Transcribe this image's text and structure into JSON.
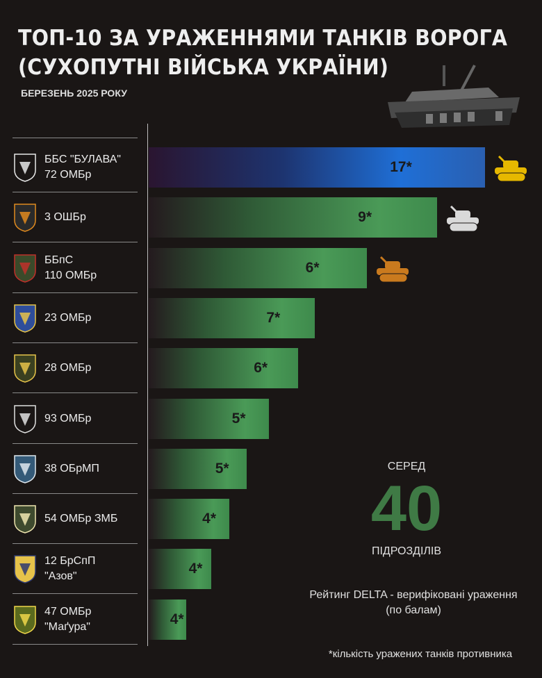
{
  "header": {
    "title_line1": "ТОП-10 ЗА УРАЖЕННЯМИ ТАНКІВ ВОРОГА",
    "title_line2": "(СУХОПУТНІ ВІЙСЬКА УКРАЇНИ)",
    "subtitle": "БЕРЕЗЕНЬ 2025 РОКУ"
  },
  "colors": {
    "leader_bar": "#1f6fd6",
    "bar": "#4a9a57",
    "gold": "#e6b800",
    "silver": "#d9d9d9",
    "bronze": "#c97a1e",
    "highlight": "#3f7a45",
    "background": "#1a1615"
  },
  "chart_data": {
    "type": "bar",
    "orientation": "horizontal",
    "categories": [
      "ББС \"БУЛАВА\" 72 ОМБр",
      "3 ОШБр",
      "ББпС 110 ОМБр",
      "23 ОМБр",
      "28 ОМБр",
      "93 ОМБр",
      "38 ОБрМП",
      "54 ОМБр ЗМБ",
      "12 БрСпП \"Азов\"",
      "47 ОМБр \"Маґура\""
    ],
    "rows": [
      {
        "line1": "ББС \"БУЛАВА\"",
        "line2": "72 ОМБр",
        "value_label": "17*",
        "tanks": 17,
        "relative_score": 1.0,
        "badge": "skull-badge",
        "medal": "gold"
      },
      {
        "line1": "3 ОШБр",
        "line2": "",
        "value_label": "9*",
        "tanks": 9,
        "relative_score": 0.857,
        "badge": "stripes-badge",
        "medal": "silver"
      },
      {
        "line1": "ББпС",
        "line2": "110 ОМБр",
        "value_label": "6*",
        "tanks": 6,
        "relative_score": 0.649,
        "badge": "horseman-badge",
        "medal": "bronze"
      },
      {
        "line1": "23 ОМБр",
        "line2": "",
        "value_label": "7*",
        "tanks": 7,
        "relative_score": 0.494,
        "badge": "arrows-badge",
        "medal": ""
      },
      {
        "line1": "28 ОМБр",
        "line2": "",
        "value_label": "6*",
        "tanks": 6,
        "relative_score": 0.444,
        "badge": "cross-badge",
        "medal": ""
      },
      {
        "line1": "93 ОМБр",
        "line2": "",
        "value_label": "5*",
        "tanks": 5,
        "relative_score": 0.357,
        "badge": "wolf-badge",
        "medal": ""
      },
      {
        "line1": "38 ОБрМП",
        "line2": "",
        "value_label": "5*",
        "tanks": 5,
        "relative_score": 0.291,
        "badge": "marines-badge",
        "medal": ""
      },
      {
        "line1": "54 ОМБр ЗМБ",
        "line2": "",
        "value_label": "4*",
        "tanks": 4,
        "relative_score": 0.24,
        "badge": "anchor-badge",
        "medal": ""
      },
      {
        "line1": "12 БрСпП",
        "line2": "\"Азов\"",
        "value_label": "4*",
        "tanks": 4,
        "relative_score": 0.186,
        "badge": "azov-badge",
        "medal": ""
      },
      {
        "line1": "47 ОМБр",
        "line2": "\"Маґура\"",
        "value_label": "4*",
        "tanks": 4,
        "relative_score": 0.112,
        "badge": "knight-badge",
        "medal": ""
      }
    ]
  },
  "summary": {
    "among": "СЕРЕД",
    "count": "40",
    "units": "ПІДРОЗДІЛІВ"
  },
  "rating_note_line1": "Рейтинг DELTA - верифіковані ураження",
  "rating_note_line2": "(по балам)",
  "footnote": "*кількість уражених танків противника"
}
